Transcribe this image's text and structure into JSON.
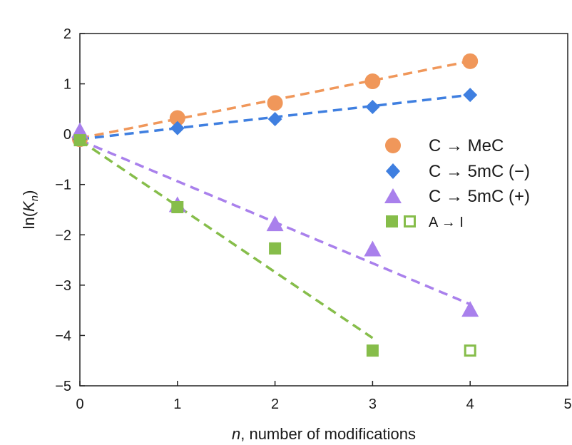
{
  "chart_data": {
    "type": "scatter",
    "title": "",
    "xlabel_italic": "n",
    "xlabel_rest": ", number of modifications",
    "ylabel_prefix": "ln(",
    "ylabel_var": "K",
    "ylabel_sub": "n",
    "ylabel_suffix": ")",
    "xlim": [
      0,
      5
    ],
    "ylim": [
      -5,
      2
    ],
    "x_ticks": [
      0,
      1,
      2,
      3,
      4,
      5
    ],
    "y_ticks": [
      2,
      1,
      0,
      -1,
      -2,
      -3,
      -4,
      -5
    ],
    "x_tick_labels": [
      "0",
      "1",
      "2",
      "3",
      "4",
      "5"
    ],
    "y_tick_labels": [
      "2",
      "1",
      "0",
      "−1",
      "−2",
      "−3",
      "−4",
      "−5"
    ],
    "grid": false,
    "legend_position": "right",
    "series": [
      {
        "name": "C → MeC",
        "marker": "circle",
        "color": "#f0975a",
        "x": [
          0,
          1,
          2,
          3,
          4
        ],
        "y": [
          -0.1,
          0.32,
          0.62,
          1.05,
          1.45
        ],
        "fit": {
          "x": [
            0,
            4
          ],
          "y": [
            -0.08,
            1.45
          ]
        }
      },
      {
        "name": "C → 5mC (−)",
        "marker": "diamond",
        "color": "#3f7fe0",
        "x": [
          0,
          1,
          2,
          3,
          4
        ],
        "y": [
          -0.1,
          0.12,
          0.3,
          0.54,
          0.78
        ],
        "fit": {
          "x": [
            0,
            4
          ],
          "y": [
            -0.1,
            0.78
          ]
        }
      },
      {
        "name": "C → 5mC (+)",
        "marker": "triangle",
        "color": "#a980ec",
        "x": [
          0,
          1,
          2,
          3,
          4
        ],
        "y": [
          0.05,
          -1.42,
          -1.8,
          -2.3,
          -3.5
        ],
        "fit": {
          "x": [
            0,
            4
          ],
          "y": [
            -0.12,
            -3.38
          ]
        }
      },
      {
        "name": "A → I",
        "marker": "square",
        "color": "#86bd4a",
        "x": [
          0,
          1,
          2,
          3,
          4
        ],
        "y": [
          -0.12,
          -1.45,
          -2.27,
          -4.3,
          -4.3
        ],
        "hollow": [
          false,
          false,
          false,
          false,
          true
        ],
        "fit": {
          "x": [
            0,
            3
          ],
          "y": [
            -0.12,
            -4.05
          ]
        }
      }
    ]
  }
}
